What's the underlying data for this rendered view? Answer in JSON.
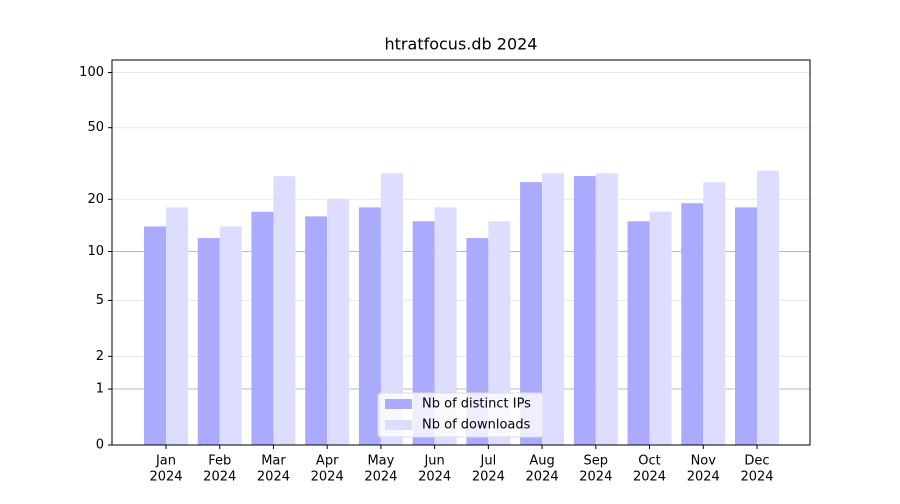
{
  "chart_data": {
    "type": "bar",
    "title": "htratfocus.db 2024",
    "categories": [
      [
        "Jan",
        "2024"
      ],
      [
        "Feb",
        "2024"
      ],
      [
        "Mar",
        "2024"
      ],
      [
        "Apr",
        "2024"
      ],
      [
        "May",
        "2024"
      ],
      [
        "Jun",
        "2024"
      ],
      [
        "Jul",
        "2024"
      ],
      [
        "Aug",
        "2024"
      ],
      [
        "Sep",
        "2024"
      ],
      [
        "Oct",
        "2024"
      ],
      [
        "Nov",
        "2024"
      ],
      [
        "Dec",
        "2024"
      ]
    ],
    "series": [
      {
        "name": "Nb of distinct IPs",
        "color": "#aaaaff",
        "values": [
          14,
          12,
          17,
          16,
          18,
          15,
          12,
          25,
          27,
          15,
          19,
          18
        ]
      },
      {
        "name": "Nb of downloads",
        "color": "#ddddff",
        "values": [
          18,
          14,
          27,
          20,
          28,
          18,
          15,
          28,
          28,
          17,
          25,
          29
        ]
      }
    ],
    "yscale": "log1p",
    "ylim": [
      0,
      117
    ],
    "yticks": [
      0,
      1,
      2,
      5,
      10,
      20,
      50,
      100
    ],
    "hlines": [
      1,
      10
    ],
    "grid": true,
    "legend": "lower center"
  }
}
